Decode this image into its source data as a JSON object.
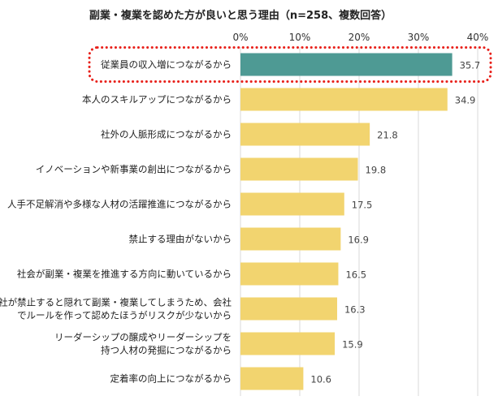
{
  "chart_data": {
    "type": "bar",
    "orientation": "horizontal",
    "title": "副業・複業を認めた方が良いと思う理由（n=258、複数回答）",
    "xlim": [
      0,
      40
    ],
    "x_ticks": [
      "0%",
      "10%",
      "20%",
      "30%",
      "40%"
    ],
    "grid": true,
    "categories": [
      [
        "従業員の収入増につながるから"
      ],
      [
        "本人のスキルアップにつながるから"
      ],
      [
        "社外の人脈形成につながるから"
      ],
      [
        "イノベーションや新事業の創出につながるから"
      ],
      [
        "人手不足解消や多様な人材の活躍推進につながるから"
      ],
      [
        "禁止する理由がないから"
      ],
      [
        "社会が副業・複業を推進する方向に動いているから"
      ],
      [
        "会社が禁止すると隠れて副業・複業してしまうため、会社",
        "でルールを作って認めたほうがリスクが少ないから"
      ],
      [
        "リーダーシップの醸成やリーダーシップを",
        "持つ人材の発掘につながるから"
      ],
      [
        "定着率の向上につながるから"
      ]
    ],
    "values": [
      35.7,
      34.9,
      21.8,
      19.8,
      17.5,
      16.9,
      16.5,
      16.3,
      15.9,
      10.6
    ],
    "value_labels": [
      "35.7",
      "34.9",
      "21.8",
      "19.8",
      "17.5",
      "16.9",
      "16.5",
      "16.3",
      "15.9",
      "10.6"
    ],
    "highlight_index": 0,
    "colors": {
      "highlight_bar": "#4E9A94",
      "bar": "#F2D46F",
      "highlight_frame": "#E8201A",
      "grid": "#D9D9D9"
    }
  }
}
